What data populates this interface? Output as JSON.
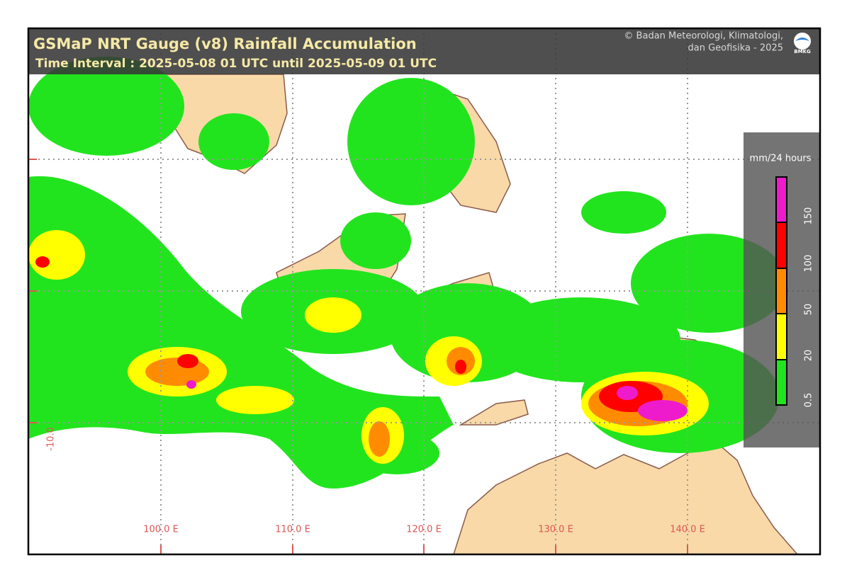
{
  "header": {
    "title": "GSMaP NRT Gauge (v8) Rainfall Accumulation",
    "subtitle": "Time Interval : 2025-05-08 01 UTC until 2025-05-09 01 UTC",
    "credit": [
      "© Badan Meteorologi, Klimatologi,",
      "dan Geofisika -  2025"
    ],
    "logo": "BMKG"
  },
  "legend": {
    "title": "mm/24 hours",
    "ticks": [
      0.5,
      20,
      50,
      100,
      150
    ]
  },
  "axes": {
    "longitudes": [
      "100.0 E",
      "110.0 E",
      "120.0 E",
      "130.0 E",
      "140.0 E"
    ],
    "latitudes": [
      "-10.0"
    ]
  }
}
